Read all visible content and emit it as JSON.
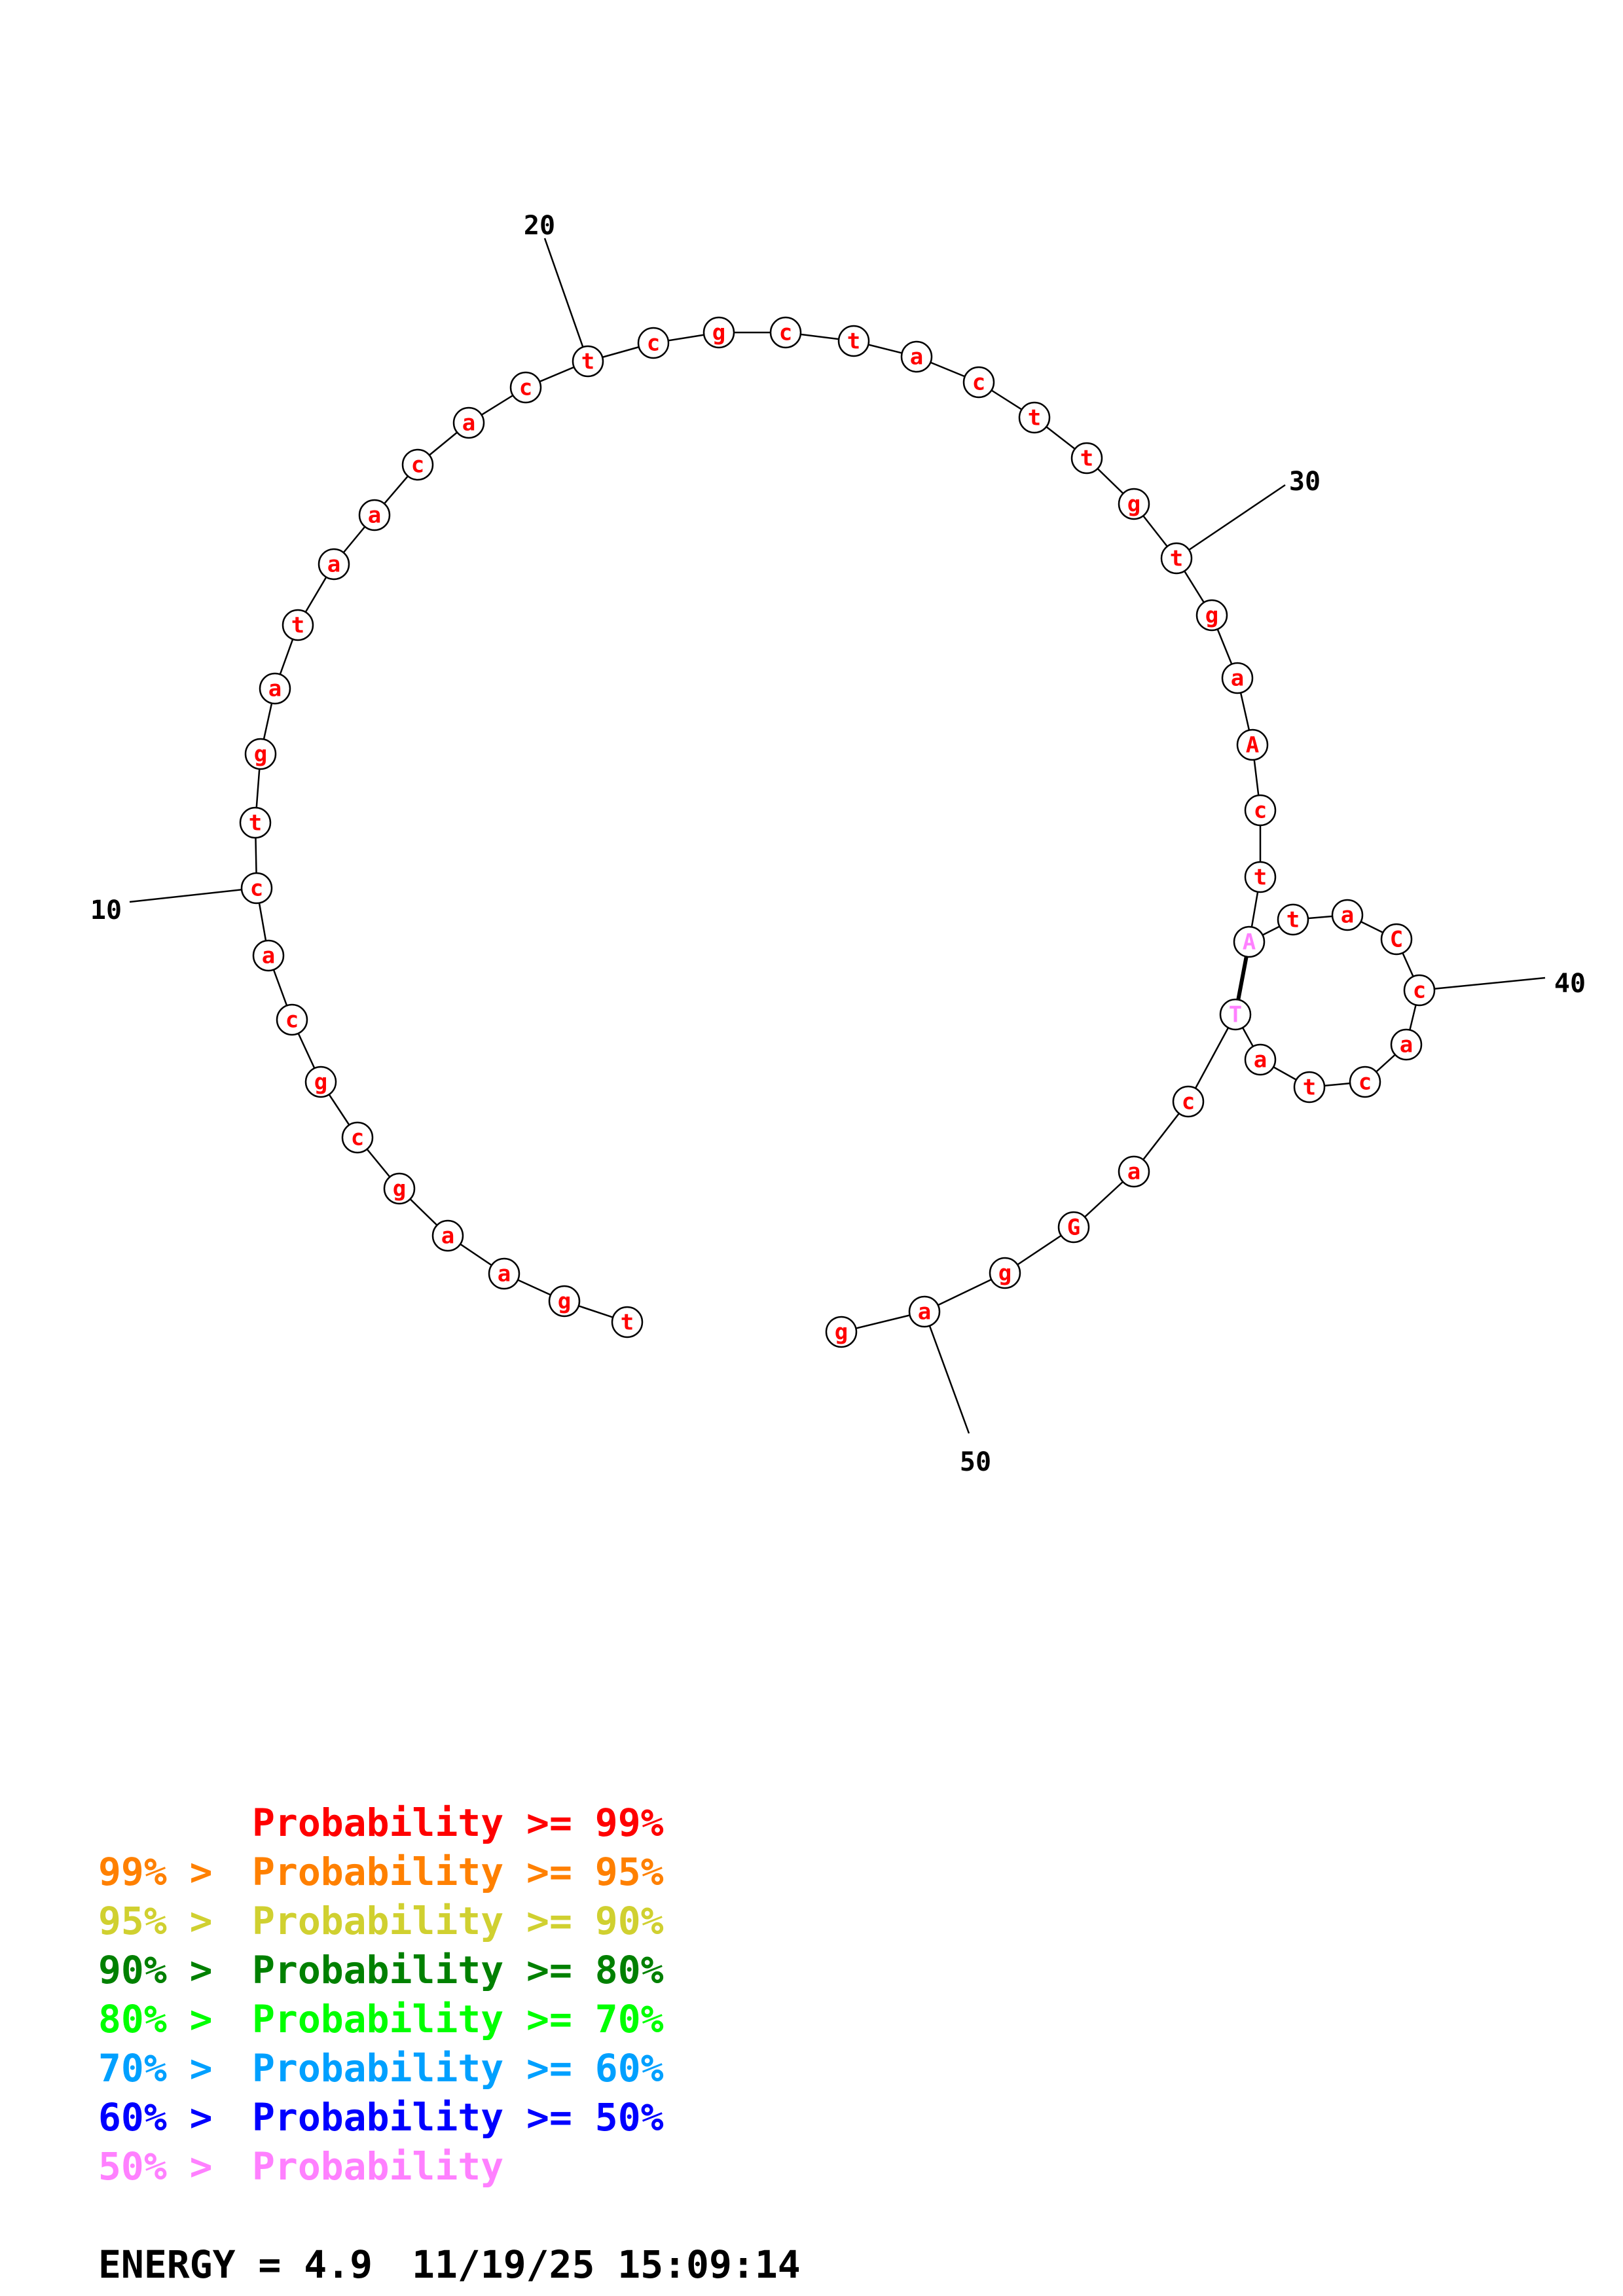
{
  "sequence": [
    {
      "n": 1,
      "base": "t",
      "color": "#ff0000"
    },
    {
      "n": 2,
      "base": "g",
      "color": "#ff0000"
    },
    {
      "n": 3,
      "base": "a",
      "color": "#ff0000"
    },
    {
      "n": 4,
      "base": "a",
      "color": "#ff0000"
    },
    {
      "n": 5,
      "base": "g",
      "color": "#ff0000"
    },
    {
      "n": 6,
      "base": "c",
      "color": "#ff0000"
    },
    {
      "n": 7,
      "base": "g",
      "color": "#ff0000"
    },
    {
      "n": 8,
      "base": "c",
      "color": "#ff0000"
    },
    {
      "n": 9,
      "base": "a",
      "color": "#ff0000"
    },
    {
      "n": 10,
      "base": "c",
      "color": "#ff0000"
    },
    {
      "n": 11,
      "base": "t",
      "color": "#ff0000"
    },
    {
      "n": 12,
      "base": "g",
      "color": "#ff0000"
    },
    {
      "n": 13,
      "base": "a",
      "color": "#ff0000"
    },
    {
      "n": 14,
      "base": "t",
      "color": "#ff0000"
    },
    {
      "n": 15,
      "base": "a",
      "color": "#ff0000"
    },
    {
      "n": 16,
      "base": "a",
      "color": "#ff0000"
    },
    {
      "n": 17,
      "base": "c",
      "color": "#ff0000"
    },
    {
      "n": 18,
      "base": "a",
      "color": "#ff0000"
    },
    {
      "n": 19,
      "base": "c",
      "color": "#ff0000"
    },
    {
      "n": 20,
      "base": "t",
      "color": "#ff0000"
    },
    {
      "n": 21,
      "base": "c",
      "color": "#ff0000"
    },
    {
      "n": 22,
      "base": "g",
      "color": "#ff0000"
    },
    {
      "n": 23,
      "base": "c",
      "color": "#ff0000"
    },
    {
      "n": 24,
      "base": "t",
      "color": "#ff0000"
    },
    {
      "n": 25,
      "base": "a",
      "color": "#ff0000"
    },
    {
      "n": 26,
      "base": "c",
      "color": "#ff0000"
    },
    {
      "n": 27,
      "base": "t",
      "color": "#ff0000"
    },
    {
      "n": 28,
      "base": "t",
      "color": "#ff0000"
    },
    {
      "n": 29,
      "base": "g",
      "color": "#ff0000"
    },
    {
      "n": 30,
      "base": "t",
      "color": "#ff0000"
    },
    {
      "n": 31,
      "base": "g",
      "color": "#ff0000"
    },
    {
      "n": 32,
      "base": "a",
      "color": "#ff0000"
    },
    {
      "n": 33,
      "base": "A",
      "color": "#ff0000"
    },
    {
      "n": 34,
      "base": "c",
      "color": "#ff0000"
    },
    {
      "n": 35,
      "base": "t",
      "color": "#ff0000"
    },
    {
      "n": 36,
      "base": "A",
      "color": "#ff80ff"
    },
    {
      "n": 37,
      "base": "t",
      "color": "#ff0000"
    },
    {
      "n": 38,
      "base": "a",
      "color": "#ff0000"
    },
    {
      "n": 39,
      "base": "C",
      "color": "#ff0000"
    },
    {
      "n": 40,
      "base": "c",
      "color": "#ff0000"
    },
    {
      "n": 41,
      "base": "a",
      "color": "#ff0000"
    },
    {
      "n": 42,
      "base": "c",
      "color": "#ff0000"
    },
    {
      "n": 43,
      "base": "t",
      "color": "#ff0000"
    },
    {
      "n": 44,
      "base": "a",
      "color": "#ff0000"
    },
    {
      "n": 45,
      "base": "T",
      "color": "#ff80ff"
    },
    {
      "n": 46,
      "base": "c",
      "color": "#ff0000"
    },
    {
      "n": 47,
      "base": "a",
      "color": "#ff0000"
    },
    {
      "n": 48,
      "base": "G",
      "color": "#ff0000"
    },
    {
      "n": 49,
      "base": "g",
      "color": "#ff0000"
    },
    {
      "n": 50,
      "base": "a",
      "color": "#ff0000"
    },
    {
      "n": 51,
      "base": "g",
      "color": "#ff0000"
    }
  ],
  "base_pairs": [
    [
      36,
      45
    ]
  ],
  "position_markers": [
    "10",
    "20",
    "30",
    "40",
    "50"
  ],
  "legend": [
    {
      "prefix": "",
      "text": "Probability >= 99%",
      "color": "#ff0000"
    },
    {
      "prefix": "99% > ",
      "text": "Probability >= 95%",
      "color": "#ff8000"
    },
    {
      "prefix": "95% > ",
      "text": "Probability >= 90%",
      "color": "#d0d030"
    },
    {
      "prefix": "90% > ",
      "text": "Probability >= 80%",
      "color": "#008000"
    },
    {
      "prefix": "80% > ",
      "text": "Probability >= 70%",
      "color": "#00ff00"
    },
    {
      "prefix": "70% > ",
      "text": "Probability >= 60%",
      "color": "#00a0ff"
    },
    {
      "prefix": "60% > ",
      "text": "Probability >= 50%",
      "color": "#0000ff"
    },
    {
      "prefix": "50% > ",
      "text": "Probability",
      "color": "#ff80ff"
    }
  ],
  "footer": {
    "energy": "ENERGY = 4.9",
    "timestamp": "11/19/25 15:09:14"
  }
}
